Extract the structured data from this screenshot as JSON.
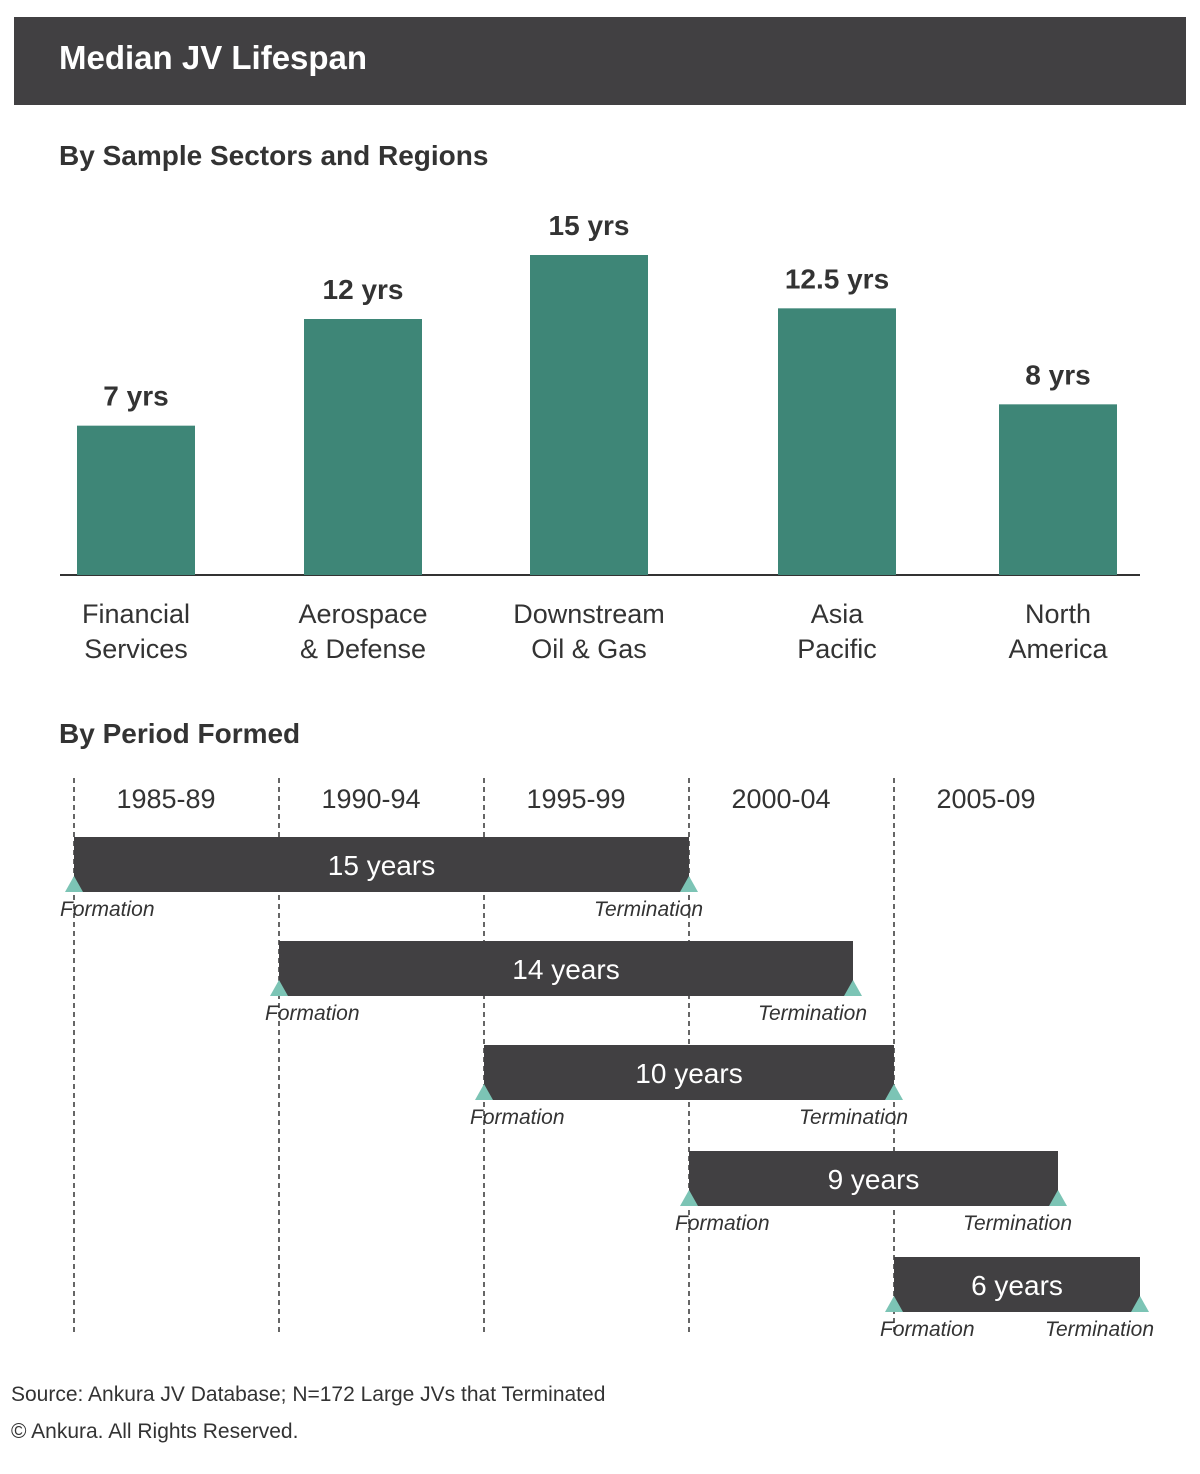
{
  "header": {
    "title": "Median JV Lifespan"
  },
  "sections": {
    "sectors_title": "By Sample Sectors and Regions",
    "period_title": "By Period Formed"
  },
  "colors": {
    "bar": "#3e8677",
    "dark": "#414042",
    "marker": "#7cc4b5",
    "text": "#333333"
  },
  "chart_data": [
    {
      "type": "bar",
      "title": "By Sample Sectors and Regions",
      "categories": [
        [
          "Financial",
          "Services"
        ],
        [
          "Aerospace",
          "& Defense"
        ],
        [
          "Downstream",
          "Oil & Gas"
        ],
        [
          "Asia",
          "Pacific"
        ],
        [
          "North",
          "America"
        ]
      ],
      "values": [
        7,
        12,
        15,
        12.5,
        8
      ],
      "value_labels": [
        "7 yrs",
        "12 yrs",
        "15 yrs",
        "12.5 yrs",
        "8 yrs"
      ],
      "unit": "yrs",
      "grid": false
    },
    {
      "type": "timeline",
      "title": "By Period Formed",
      "periods": [
        "1985-89",
        "1990-94",
        "1995-99",
        "2000-04",
        "2005-09"
      ],
      "bars": [
        {
          "label": "15 years",
          "formation_year": 1985,
          "termination_year": 2000,
          "start_label": "Formation",
          "end_label": "Termination"
        },
        {
          "label": "14 years",
          "formation_year": 1990,
          "termination_year": 2004,
          "start_label": "Formation",
          "end_label": "Termination"
        },
        {
          "label": "10 years",
          "formation_year": 1995,
          "termination_year": 2005,
          "start_label": "Formation",
          "end_label": "Termination"
        },
        {
          "label": "9 years",
          "formation_year": 2000,
          "termination_year": 2009,
          "start_label": "Formation",
          "end_label": "Termination"
        },
        {
          "label": "6 years",
          "formation_year": 2005,
          "termination_year": 2011,
          "start_label": "Formation",
          "end_label": "Termination"
        }
      ]
    }
  ],
  "footer": {
    "source": "Source: Ankura JV Database; N=172 Large JVs that Terminated",
    "copyright": "© Ankura. All Rights Reserved."
  }
}
